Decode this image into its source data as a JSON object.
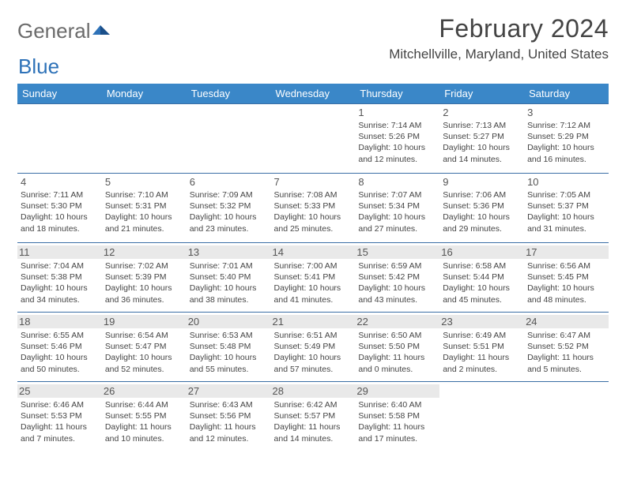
{
  "logo": {
    "text1": "General",
    "text2": "Blue"
  },
  "title": "February 2024",
  "location": "Mitchellville, Maryland, United States",
  "colors": {
    "header_bg": "#3a87c8",
    "header_text": "#ffffff",
    "row_border": "#3a6ea5",
    "shade_bg": "#e9e9e9",
    "body_text": "#444444",
    "logo_gray": "#6b6b6b",
    "logo_blue": "#2e72b8"
  },
  "dayHeaders": [
    "Sunday",
    "Monday",
    "Tuesday",
    "Wednesday",
    "Thursday",
    "Friday",
    "Saturday"
  ],
  "weeks": [
    [
      null,
      null,
      null,
      null,
      {
        "n": "1",
        "sr": "7:14 AM",
        "ss": "5:26 PM",
        "dl": "10 hours and 12 minutes."
      },
      {
        "n": "2",
        "sr": "7:13 AM",
        "ss": "5:27 PM",
        "dl": "10 hours and 14 minutes."
      },
      {
        "n": "3",
        "sr": "7:12 AM",
        "ss": "5:29 PM",
        "dl": "10 hours and 16 minutes."
      }
    ],
    [
      {
        "n": "4",
        "sr": "7:11 AM",
        "ss": "5:30 PM",
        "dl": "10 hours and 18 minutes."
      },
      {
        "n": "5",
        "sr": "7:10 AM",
        "ss": "5:31 PM",
        "dl": "10 hours and 21 minutes."
      },
      {
        "n": "6",
        "sr": "7:09 AM",
        "ss": "5:32 PM",
        "dl": "10 hours and 23 minutes."
      },
      {
        "n": "7",
        "sr": "7:08 AM",
        "ss": "5:33 PM",
        "dl": "10 hours and 25 minutes."
      },
      {
        "n": "8",
        "sr": "7:07 AM",
        "ss": "5:34 PM",
        "dl": "10 hours and 27 minutes."
      },
      {
        "n": "9",
        "sr": "7:06 AM",
        "ss": "5:36 PM",
        "dl": "10 hours and 29 minutes."
      },
      {
        "n": "10",
        "sr": "7:05 AM",
        "ss": "5:37 PM",
        "dl": "10 hours and 31 minutes."
      }
    ],
    [
      {
        "n": "11",
        "sr": "7:04 AM",
        "ss": "5:38 PM",
        "dl": "10 hours and 34 minutes.",
        "shade": true
      },
      {
        "n": "12",
        "sr": "7:02 AM",
        "ss": "5:39 PM",
        "dl": "10 hours and 36 minutes.",
        "shade": true
      },
      {
        "n": "13",
        "sr": "7:01 AM",
        "ss": "5:40 PM",
        "dl": "10 hours and 38 minutes.",
        "shade": true
      },
      {
        "n": "14",
        "sr": "7:00 AM",
        "ss": "5:41 PM",
        "dl": "10 hours and 41 minutes.",
        "shade": true
      },
      {
        "n": "15",
        "sr": "6:59 AM",
        "ss": "5:42 PM",
        "dl": "10 hours and 43 minutes.",
        "shade": true
      },
      {
        "n": "16",
        "sr": "6:58 AM",
        "ss": "5:44 PM",
        "dl": "10 hours and 45 minutes.",
        "shade": true
      },
      {
        "n": "17",
        "sr": "6:56 AM",
        "ss": "5:45 PM",
        "dl": "10 hours and 48 minutes.",
        "shade": true
      }
    ],
    [
      {
        "n": "18",
        "sr": "6:55 AM",
        "ss": "5:46 PM",
        "dl": "10 hours and 50 minutes.",
        "shade": true
      },
      {
        "n": "19",
        "sr": "6:54 AM",
        "ss": "5:47 PM",
        "dl": "10 hours and 52 minutes.",
        "shade": true
      },
      {
        "n": "20",
        "sr": "6:53 AM",
        "ss": "5:48 PM",
        "dl": "10 hours and 55 minutes.",
        "shade": true
      },
      {
        "n": "21",
        "sr": "6:51 AM",
        "ss": "5:49 PM",
        "dl": "10 hours and 57 minutes.",
        "shade": true
      },
      {
        "n": "22",
        "sr": "6:50 AM",
        "ss": "5:50 PM",
        "dl": "11 hours and 0 minutes.",
        "shade": true
      },
      {
        "n": "23",
        "sr": "6:49 AM",
        "ss": "5:51 PM",
        "dl": "11 hours and 2 minutes.",
        "shade": true
      },
      {
        "n": "24",
        "sr": "6:47 AM",
        "ss": "5:52 PM",
        "dl": "11 hours and 5 minutes.",
        "shade": true
      }
    ],
    [
      {
        "n": "25",
        "sr": "6:46 AM",
        "ss": "5:53 PM",
        "dl": "11 hours and 7 minutes.",
        "shade": true
      },
      {
        "n": "26",
        "sr": "6:44 AM",
        "ss": "5:55 PM",
        "dl": "11 hours and 10 minutes.",
        "shade": true
      },
      {
        "n": "27",
        "sr": "6:43 AM",
        "ss": "5:56 PM",
        "dl": "11 hours and 12 minutes.",
        "shade": true
      },
      {
        "n": "28",
        "sr": "6:42 AM",
        "ss": "5:57 PM",
        "dl": "11 hours and 14 minutes.",
        "shade": true
      },
      {
        "n": "29",
        "sr": "6:40 AM",
        "ss": "5:58 PM",
        "dl": "11 hours and 17 minutes.",
        "shade": true
      },
      null,
      null
    ]
  ],
  "labels": {
    "sunrise": "Sunrise:",
    "sunset": "Sunset:",
    "daylight": "Daylight:"
  }
}
